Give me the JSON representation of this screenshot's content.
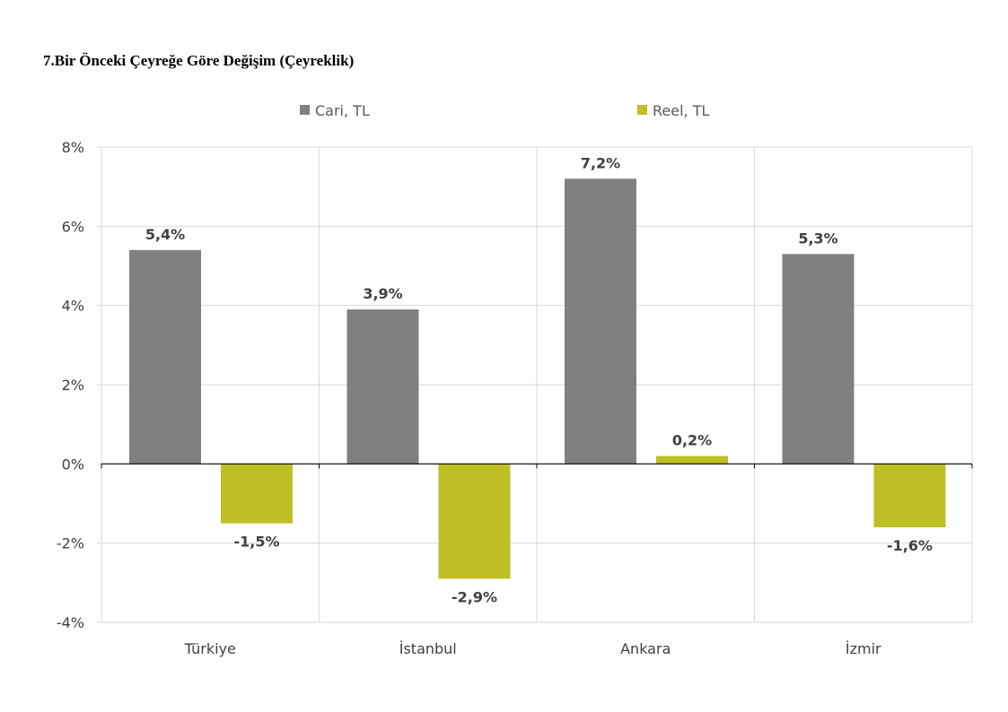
{
  "colors": {
    "cari": "#808080",
    "reel": "#bfbf26",
    "grid": "#d9d9d9",
    "axis": "#000000",
    "text": "#404040"
  },
  "chart_data": {
    "type": "bar",
    "title": "7.Bir Önceki Çeyreğe Göre Değişim (Çeyreklik)",
    "categories": [
      "Türkiye",
      "İstanbul",
      "Ankara",
      "İzmir"
    ],
    "series": [
      {
        "name": "Cari, TL",
        "values": [
          5.4,
          3.9,
          7.2,
          5.3
        ],
        "labels": [
          "5,4%",
          "3,9%",
          "7,2%",
          "5,3%"
        ]
      },
      {
        "name": "Reel, TL",
        "values": [
          -1.5,
          -2.9,
          0.2,
          -1.6
        ],
        "labels": [
          "-1,5%",
          "-2,9%",
          "0,2%",
          "-1,6%"
        ]
      }
    ],
    "ylim": [
      -4,
      8
    ],
    "yticks": [
      8,
      6,
      4,
      2,
      0,
      -2,
      -4
    ],
    "ytick_labels": [
      "8%",
      "6%",
      "4%",
      "2%",
      "0%",
      "-2%",
      "-4%"
    ],
    "grid": true,
    "legend": "top-center"
  }
}
